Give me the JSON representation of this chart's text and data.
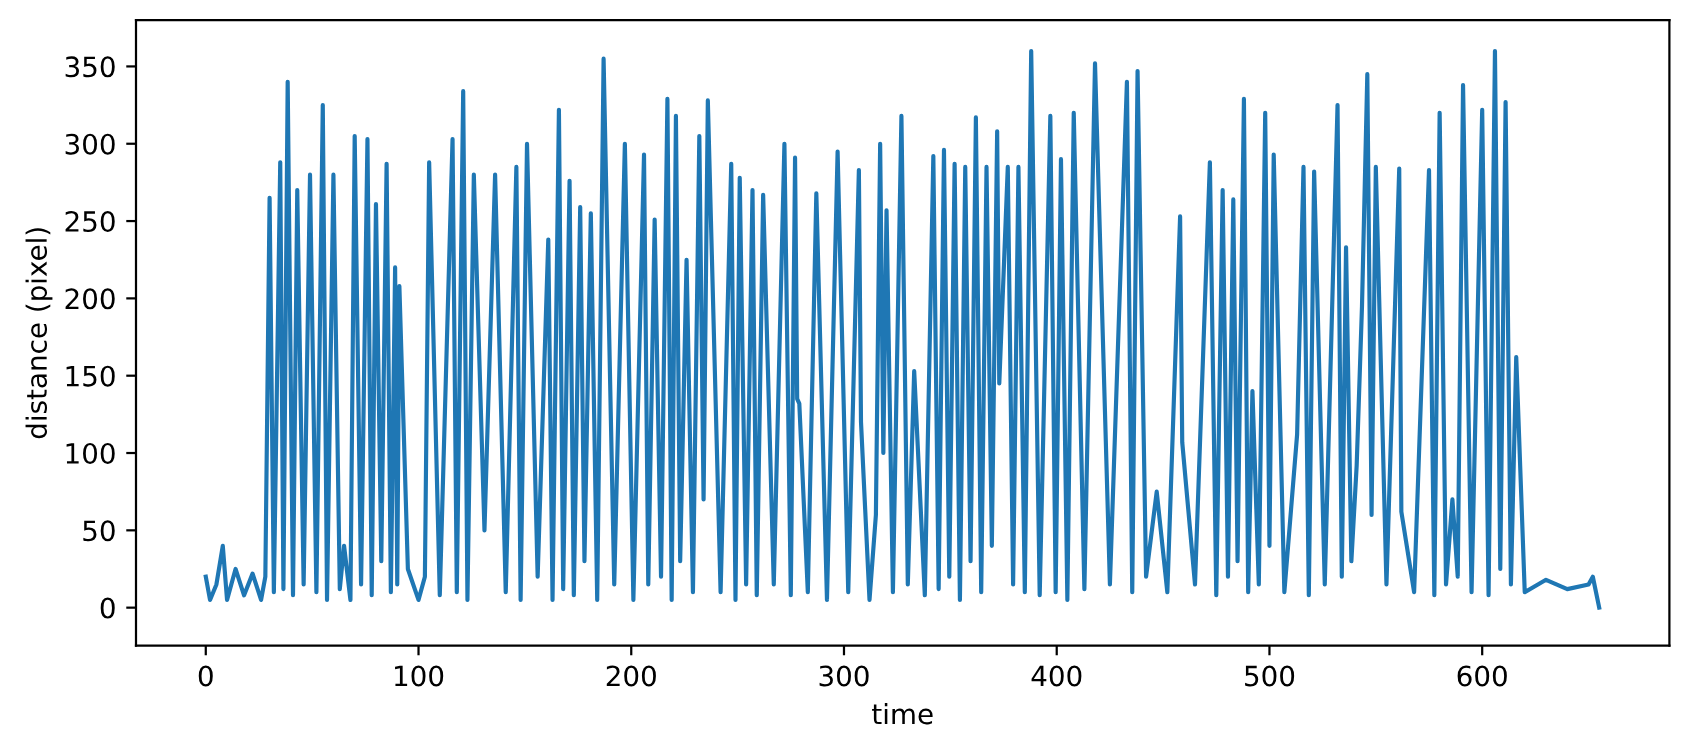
{
  "chart_data": {
    "type": "line",
    "xlabel": "time",
    "ylabel": "distance (pixel)",
    "x": [
      0,
      2,
      5,
      8,
      10,
      14,
      18,
      22,
      26,
      28,
      30,
      32,
      35,
      36.5,
      38.5,
      41,
      43,
      46,
      49,
      52,
      55,
      57,
      60,
      63,
      65,
      68,
      70,
      73,
      76,
      78,
      80,
      82.5,
      85,
      87,
      89,
      90,
      91,
      95,
      100,
      103,
      105,
      110,
      116,
      118,
      121,
      123,
      126,
      131,
      136,
      141,
      146,
      148,
      151,
      156,
      161,
      163,
      166,
      168,
      171,
      173,
      176,
      178,
      181,
      184,
      187,
      192,
      197,
      201,
      206,
      208,
      211,
      214,
      217,
      219,
      221,
      223,
      226,
      229,
      232,
      234,
      236,
      242,
      247,
      249,
      251,
      254,
      257,
      259,
      262,
      267,
      272,
      275,
      277,
      278,
      279,
      283,
      287,
      292,
      297,
      302,
      307,
      308,
      312,
      315,
      317,
      318.5,
      320,
      323,
      327,
      330,
      333,
      338,
      342,
      344.5,
      347,
      349.5,
      352,
      354.5,
      357,
      359.5,
      362,
      364.5,
      367,
      369.5,
      372,
      373,
      377,
      379.5,
      382,
      385,
      388,
      392,
      397,
      399.5,
      402,
      405,
      408,
      413,
      418,
      425,
      433,
      435.5,
      438,
      442,
      447,
      452,
      458,
      459,
      465,
      472,
      475,
      478,
      480.5,
      483,
      485,
      487,
      488,
      490,
      492,
      495,
      498,
      500,
      502,
      507,
      513,
      516,
      518.5,
      521,
      526,
      532,
      534,
      536,
      538.5,
      541,
      543.5,
      546,
      548,
      550,
      555,
      561,
      562,
      568,
      575,
      577.5,
      580,
      583,
      586,
      588.5,
      591,
      595,
      600,
      603,
      606,
      608.5,
      611,
      613.5,
      616,
      620,
      630,
      640,
      650,
      652,
      655
    ],
    "series": [
      {
        "color": "#1f77b4",
        "values": [
          20,
          5,
          15,
          40,
          5,
          25,
          8,
          22,
          5,
          20,
          265,
          10,
          288,
          12,
          340,
          8,
          270,
          15,
          280,
          10,
          325,
          5,
          280,
          12,
          40,
          5,
          305,
          15,
          303,
          8,
          261,
          30,
          287,
          10,
          220,
          15,
          208,
          25,
          5,
          20,
          288,
          8,
          303,
          10,
          334,
          5,
          280,
          50,
          280,
          10,
          285,
          5,
          300,
          20,
          238,
          5,
          322,
          12,
          276,
          8,
          259,
          30,
          255,
          5,
          355,
          15,
          300,
          5,
          293,
          15,
          251,
          20,
          329,
          5,
          318,
          30,
          225,
          10,
          305,
          70,
          328,
          10,
          287,
          5,
          278,
          15,
          270,
          8,
          267,
          15,
          300,
          8,
          291,
          135,
          132,
          10,
          268,
          5,
          295,
          10,
          283,
          120,
          5,
          60,
          300,
          100,
          257,
          10,
          318,
          15,
          153,
          8,
          292,
          12,
          296,
          20,
          287,
          5,
          285,
          30,
          317,
          10,
          285,
          40,
          308,
          145,
          285,
          15,
          285,
          10,
          360,
          8,
          318,
          10,
          290,
          5,
          320,
          12,
          352,
          15,
          340,
          10,
          347,
          20,
          75,
          10,
          253,
          107,
          15,
          288,
          8,
          270,
          20,
          264,
          30,
          228,
          329,
          10,
          140,
          15,
          320,
          40,
          293,
          10,
          112,
          285,
          8,
          282,
          15,
          325,
          20,
          233,
          30,
          92,
          195,
          345,
          60,
          285,
          15,
          284,
          62,
          10,
          283,
          8,
          320,
          15,
          70,
          20,
          338,
          10,
          322,
          8,
          360,
          25,
          327,
          15,
          162,
          10,
          18,
          12,
          15,
          20,
          0
        ]
      }
    ],
    "xlim": [
      -32.8,
      688
    ],
    "ylim": [
      -24.5,
      380
    ],
    "xticks": [
      0,
      100,
      200,
      300,
      400,
      500,
      600
    ],
    "yticks": [
      0,
      50,
      100,
      150,
      200,
      250,
      300,
      350
    ],
    "grid": false,
    "legend": false
  }
}
